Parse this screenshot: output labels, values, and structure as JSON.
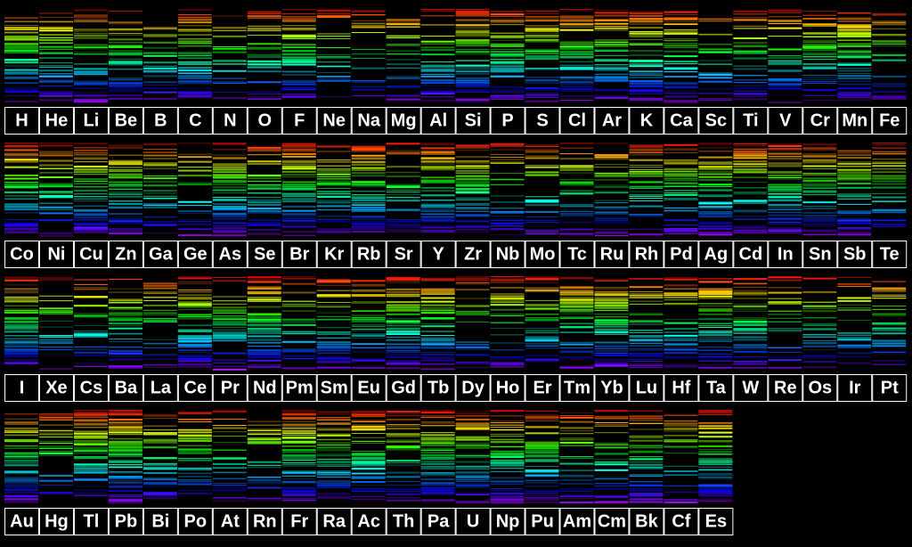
{
  "rows": [
    [
      "H",
      "He",
      "Li",
      "Be",
      "B",
      "C",
      "N",
      "O",
      "F",
      "Ne",
      "Na",
      "Mg",
      "Al",
      "Si",
      "P",
      "S",
      "Cl",
      "Ar",
      "K",
      "Ca",
      "Sc",
      "Ti",
      "V",
      "Cr",
      "Mn",
      "Fe"
    ],
    [
      "Co",
      "Ni",
      "Cu",
      "Zn",
      "Ga",
      "Ge",
      "As",
      "Se",
      "Br",
      "Kr",
      "Rb",
      "Sr",
      "Y",
      "Zr",
      "Nb",
      "Mo",
      "Tc",
      "Ru",
      "Rh",
      "Pd",
      "Ag",
      "Cd",
      "In",
      "Sn",
      "Sb",
      "Te"
    ],
    [
      "I",
      "Xe",
      "Cs",
      "Ba",
      "La",
      "Ce",
      "Pr",
      "Nd",
      "Pm",
      "Sm",
      "Eu",
      "Gd",
      "Tb",
      "Dy",
      "Ho",
      "Er",
      "Tm",
      "Yb",
      "Lu",
      "Hf",
      "Ta",
      "W",
      "Re",
      "Os",
      "Ir",
      "Pt"
    ],
    [
      "Au",
      "Hg",
      "Tl",
      "Pb",
      "Bi",
      "Po",
      "At",
      "Rn",
      "Fr",
      "Ra",
      "Ac",
      "Th",
      "Pa",
      "U",
      "Np",
      "Pu",
      "Am",
      "Cm",
      "Bk",
      "Cf",
      "Es"
    ]
  ]
}
